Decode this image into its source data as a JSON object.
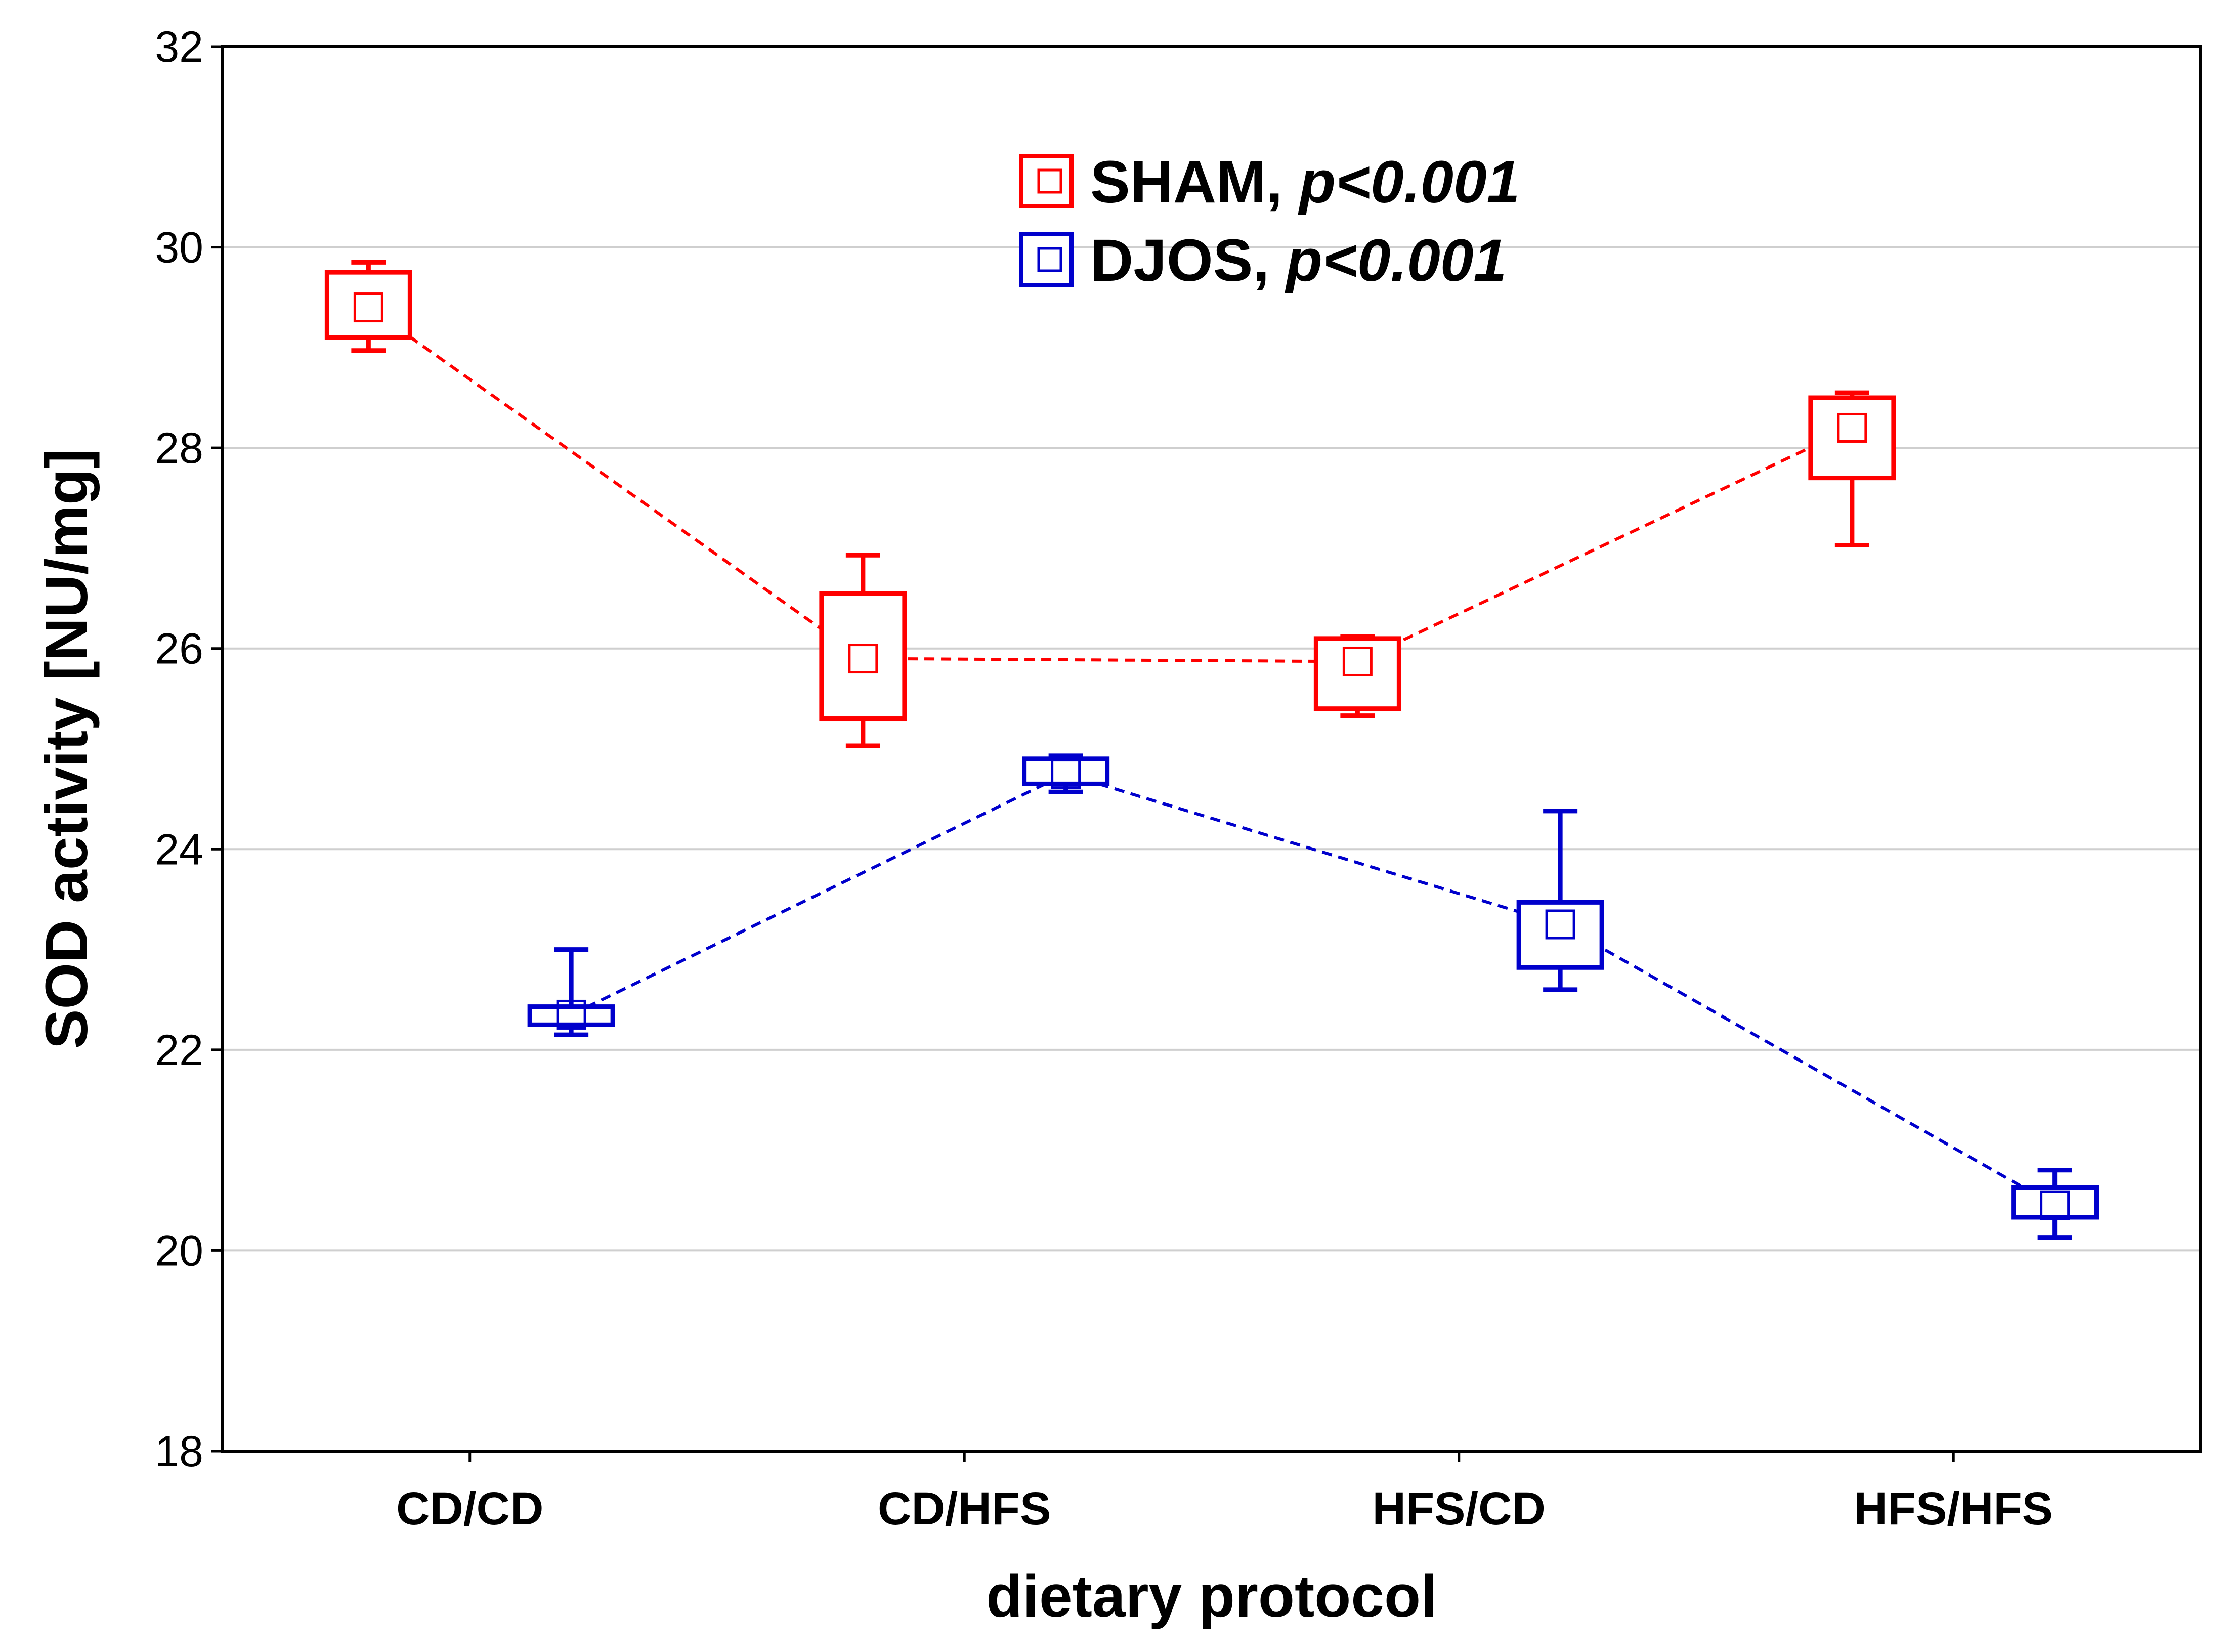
{
  "chart_data": {
    "type": "box",
    "xlabel": "dietary protocol",
    "ylabel": "SOD activity [NU/mg]",
    "ylim": [
      18,
      32
    ],
    "yticks": [
      18,
      20,
      22,
      24,
      26,
      28,
      30,
      32
    ],
    "grid": true,
    "legend_position": "top-center",
    "categories": [
      "CD/CD",
      "CD/HFS",
      "HFS/CD",
      "HFS/HFS"
    ],
    "series": [
      {
        "name": "SHAM",
        "p_label": "p<0.001",
        "color": "#ff0000",
        "boxes": [
          {
            "median": 29.4,
            "q1": 29.1,
            "q3": 29.75,
            "min": 28.97,
            "max": 29.85
          },
          {
            "median": 25.9,
            "q1": 25.3,
            "q3": 26.55,
            "min": 25.03,
            "max": 26.93
          },
          {
            "median": 25.87,
            "q1": 25.4,
            "q3": 26.1,
            "min": 25.33,
            "max": 26.12
          },
          {
            "median": 28.2,
            "q1": 27.7,
            "q3": 28.5,
            "min": 27.03,
            "max": 28.55
          }
        ]
      },
      {
        "name": "DJOS",
        "p_label": "p<0.001",
        "color": "#0000cc",
        "boxes": [
          {
            "median": 22.35,
            "q1": 22.25,
            "q3": 22.43,
            "min": 22.15,
            "max": 23.0
          },
          {
            "median": 24.75,
            "q1": 24.65,
            "q3": 24.9,
            "min": 24.57,
            "max": 24.93
          },
          {
            "median": 23.25,
            "q1": 22.82,
            "q3": 23.47,
            "min": 22.6,
            "max": 24.38
          },
          {
            "median": 20.45,
            "q1": 20.33,
            "q3": 20.63,
            "min": 20.13,
            "max": 20.8
          }
        ]
      }
    ]
  }
}
